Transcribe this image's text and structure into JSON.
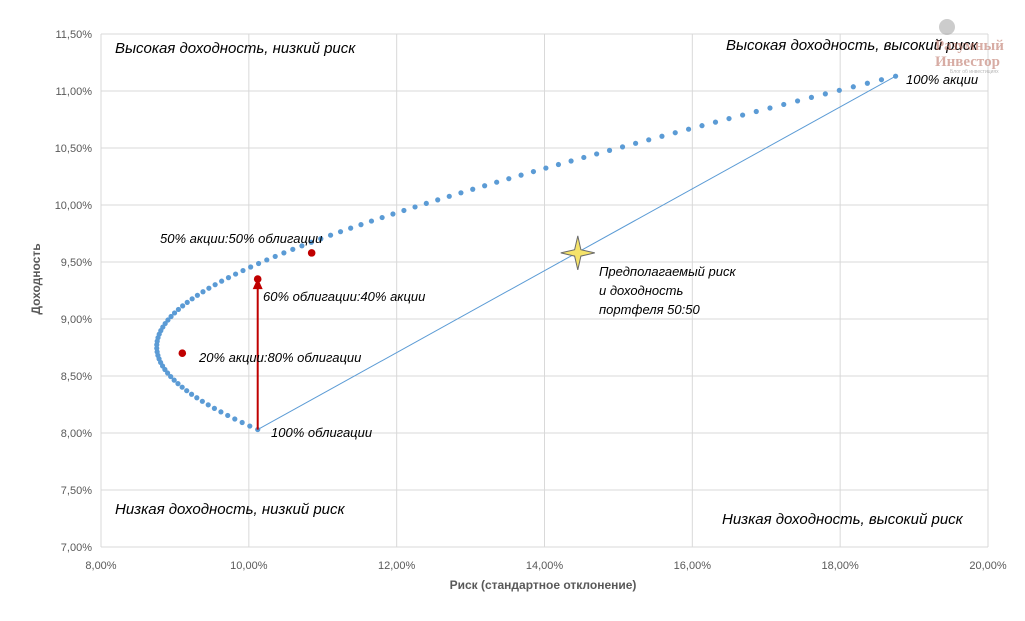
{
  "chart_data": {
    "type": "scatter",
    "xlabel": "Риск (стандартное отклонение)",
    "ylabel": "Доходность",
    "xlim": [
      0.08,
      0.2
    ],
    "ylim": [
      0.07,
      0.115
    ],
    "x_ticks": [
      "8,00%",
      "10,00%",
      "12,00%",
      "14,00%",
      "16,00%",
      "18,00%",
      "20,00%"
    ],
    "y_ticks": [
      "7,00%",
      "7,50%",
      "8,00%",
      "8,50%",
      "9,00%",
      "9,50%",
      "10,00%",
      "10,50%",
      "11,00%",
      "11,50%"
    ],
    "grid": "vertical and horizontal",
    "frontier": {
      "description": "portfolios from 100% bonds to 100% stocks in 1% steps",
      "start": {
        "x": 0.1012,
        "y": 0.0803
      },
      "end": {
        "x": 0.1875,
        "y": 0.1113
      },
      "min_risk": {
        "x": 0.091,
        "y": 0.087
      },
      "color": "#5b9bd5"
    },
    "highlighted_points": [
      {
        "x": 0.091,
        "y": 0.087,
        "label": "20% акции:80% облигации"
      },
      {
        "x": 0.1012,
        "y": 0.0935,
        "label": "60% облигации:40% акции"
      },
      {
        "x": 0.1085,
        "y": 0.0958,
        "label": "50% акции:50% облигации"
      }
    ],
    "highlight_color": "#c00000",
    "point_labels": {
      "bonds": "100% облигации",
      "stocks": "100% акции"
    },
    "straight_line": {
      "from": {
        "x": 0.1012,
        "y": 0.0803
      },
      "to": {
        "x": 0.1875,
        "y": 0.1113
      }
    },
    "star": {
      "x": 0.1445,
      "y": 0.0958,
      "label_lines": [
        "Предполагаемый риск",
        "и доходность",
        "портфеля 50:50"
      ],
      "color": "#f5e36a"
    },
    "arrow": {
      "from": {
        "x": 0.1012,
        "y": 0.0803
      },
      "to": {
        "x": 0.1012,
        "y": 0.0935
      },
      "color": "#c00000"
    },
    "quadrants": {
      "top_left": "Высокая доходность, низкий риск",
      "top_right": "Высокая доходность, высокий риск",
      "bottom_left": "Низкая доходность, низкий риск",
      "bottom_right": "Низкая доходность, высокий риск"
    },
    "watermark": {
      "line1": "Разумный",
      "line2": "Инвестор",
      "line3": "Блог об инвестициях"
    }
  }
}
